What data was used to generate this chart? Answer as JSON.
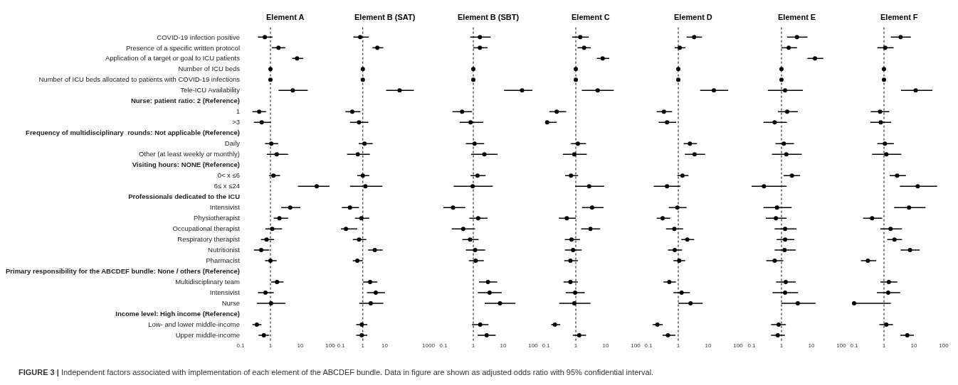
{
  "chart_data": [
    {
      "type": "scatter",
      "title": "Element A",
      "orientation": "horizontal",
      "color": "#000000",
      "marker": "circle",
      "log": "x",
      "xlim": [
        0.1,
        100
      ],
      "xticks": [
        0.1,
        1,
        10,
        100
      ],
      "ref_lines": [
        {
          "axis": "x",
          "value": 1,
          "line_style": "dotted",
          "color": "#000000"
        }
      ],
      "annotations": [
        "FIGURE 3 | Independent factors associated with implementation of each element of the ABCDEF bundle. Data in figure are shown as adjusted odds ratio with 95% confidential interval."
      ],
      "categories": [
        "COVID-19 infection positive",
        "Presence of a specific written protocol",
        "Application of a target or goal to ICU patients",
        "Number of ICU beds",
        "Number of ICU beds allocated to patients with COVID-19 infections",
        "Tele-ICU Availability",
        "Nurse: patient ratio: 2 (Reference)",
        "1",
        ">3",
        "Frequency of multidisciplinary  rounds: Not applicable (Reference)",
        "Daily",
        "Other (at least weekly or monthly)",
        "Visiting hours: NONE (Reference)",
        "0< x ≤6",
        "6≤ x ≤24",
        "Professionals dedicated to the ICU",
        "Intensivist",
        "Physiotherapist",
        "Occupational therapist",
        "Respiratory therapist",
        "Nutritionist",
        "Pharmacist",
        "Primary responsibility for the ABCDEF bundle: None / others (Reference)",
        "Multidisciplinary team",
        "Intensivist",
        "Nurse",
        "Income level: High income (Reference)",
        "Low- and lower middle-income",
        "Upper middle-income"
      ],
      "values": [
        0.65,
        1.86,
        7.8,
        1,
        1,
        5.6,
        null,
        0.42,
        0.51,
        null,
        1.07,
        1.62,
        null,
        1.26,
        35.5,
        null,
        4.6,
        2.0,
        1.15,
        0.74,
        0.49,
        1.0,
        null,
        1.66,
        0.68,
        1.05,
        null,
        0.35,
        0.6
      ],
      "errors": [
        [
          0.38,
          1.17
        ],
        [
          1.12,
          3.16
        ],
        [
          5.4,
          12.6
        ],
        null,
        null,
        [
          1.86,
          17.8
        ],
        null,
        [
          0.25,
          0.71
        ],
        [
          0.28,
          1.02
        ],
        null,
        [
          0.66,
          1.82
        ],
        [
          0.76,
          3.9
        ],
        null,
        [
          0.89,
          2.1
        ],
        [
          8.3,
          95
        ],
        null,
        [
          2.3,
          10
        ],
        [
          1.29,
          3.9
        ],
        [
          0.68,
          2.45
        ],
        [
          0.48,
          1.32
        ],
        [
          0.28,
          0.91
        ],
        [
          0.66,
          1.62
        ],
        null,
        [
          1.05,
          2.75
        ],
        [
          0.38,
          1.29
        ],
        [
          0.35,
          3.16
        ],
        null,
        [
          0.25,
          0.5
        ],
        [
          0.4,
          0.9
        ]
      ]
    },
    {
      "type": "scatter",
      "title": "Element B (SAT)",
      "orientation": "horizontal",
      "color": "#000000",
      "marker": "circle",
      "log": "x",
      "tick_labels": "x",
      "xlim": [
        0.1,
        1000
      ],
      "xticks": [
        0.1,
        1,
        10,
        1000
      ],
      "ref_lines": [
        {
          "axis": "x",
          "value": 1,
          "line_style": "dotted",
          "color": "#000000"
        }
      ],
      "values": [
        0.76,
        4.6,
        null,
        1,
        1,
        48,
        null,
        0.33,
        0.67,
        null,
        1.2,
        0.59,
        null,
        1.0,
        1.32,
        null,
        0.26,
        0.86,
        0.17,
        0.67,
        3.5,
        0.56,
        null,
        2.15,
        3.9,
        2.3,
        null,
        0.9,
        0.9
      ],
      "errors": [
        [
          0.37,
          1.85
        ],
        [
          2.75,
          8.6
        ],
        null,
        null,
        null,
        [
          11.6,
          215
        ],
        null,
        [
          0.16,
          0.78
        ],
        [
          0.26,
          1.79
        ],
        null,
        [
          0.65,
          2.84
        ],
        [
          0.19,
          2.09
        ],
        null,
        [
          0.56,
          1.97
        ],
        [
          0.26,
          7.8
        ],
        null,
        [
          0.11,
          0.67
        ],
        [
          0.44,
          1.97
        ],
        [
          0.1,
          0.56
        ],
        [
          0.35,
          1.45
        ],
        [
          1.74,
          8.1
        ],
        [
          0.35,
          1.0
        ],
        null,
        [
          1.03,
          4.6
        ],
        [
          1.54,
          10.3
        ],
        [
          0.69,
          8.6
        ],
        null,
        [
          0.5,
          1.6
        ],
        [
          0.5,
          1.6
        ]
      ]
    },
    {
      "type": "scatter",
      "title": "Element B (SBT)",
      "orientation": "horizontal",
      "color": "#000000",
      "marker": "circle",
      "log": "x",
      "tick_labels": "x",
      "xlim": [
        0.1,
        100
      ],
      "xticks": [
        0.1,
        1,
        10,
        100
      ],
      "ref_lines": [
        {
          "axis": "x",
          "value": 1,
          "line_style": "dotted",
          "color": "#000000"
        }
      ],
      "values": [
        1.66,
        1.66,
        null,
        1,
        1,
        42.7,
        null,
        0.42,
        0.81,
        null,
        1.1,
        2.34,
        null,
        1.38,
        0.95,
        null,
        0.21,
        1.45,
        0.46,
        0.78,
        1.15,
        1.2,
        null,
        3.1,
        3.5,
        7.8,
        null,
        1.7,
        2.8
      ],
      "errors": [
        [
          0.79,
          3.8
        ],
        [
          1.0,
          3.0
        ],
        null,
        null,
        null,
        [
          10.7,
          95
        ],
        null,
        [
          0.2,
          0.91
        ],
        [
          0.35,
          2.14
        ],
        null,
        [
          0.56,
          2.3
        ],
        [
          0.85,
          6.5
        ],
        null,
        [
          0.81,
          2.57
        ],
        [
          0.22,
          4.5
        ],
        null,
        [
          0.1,
          0.54
        ],
        [
          0.74,
          3.0
        ],
        [
          0.19,
          1.15
        ],
        [
          0.43,
          1.51
        ],
        [
          0.56,
          2.5
        ],
        [
          0.71,
          2.24
        ],
        null,
        [
          1.55,
          6.3
        ],
        [
          1.41,
          8.9
        ],
        [
          2.4,
          25.7
        ],
        null,
        [
          0.9,
          3.2
        ],
        [
          1.4,
          5.6
        ]
      ]
    },
    {
      "type": "scatter",
      "title": "Element C",
      "orientation": "horizontal",
      "color": "#000000",
      "marker": "circle",
      "log": "x",
      "tick_labels": "x",
      "xlim": [
        0.1,
        100
      ],
      "xticks": [
        0.1,
        1,
        10,
        100
      ],
      "ref_lines": [
        {
          "axis": "x",
          "value": 1,
          "line_style": "dotted",
          "color": "#000000"
        }
      ],
      "values": [
        1.41,
        1.9,
        7.9,
        1,
        1,
        5.4,
        null,
        0.23,
        0.11,
        null,
        1.17,
        0.89,
        null,
        0.69,
        2.8,
        null,
        3.5,
        0.5,
        3.1,
        0.72,
        0.81,
        0.66,
        null,
        0.66,
        0.95,
        0.89,
        null,
        0.2,
        1.3
      ],
      "errors": [
        [
          0.76,
          2.7
        ],
        [
          1.15,
          3.16
        ],
        [
          5.1,
          13.2
        ],
        null,
        null,
        [
          1.58,
          18.6
        ],
        null,
        [
          0.13,
          0.48
        ],
        [
          0.1,
          0.23
        ],
        null,
        [
          0.69,
          2.19
        ],
        [
          0.37,
          2.34
        ],
        null,
        [
          0.44,
          1.2
        ],
        [
          0.95,
          8.9
        ],
        null,
        [
          1.62,
          8.5
        ],
        [
          0.27,
          1.0
        ],
        [
          1.51,
          6.5
        ],
        [
          0.43,
          1.38
        ],
        [
          0.43,
          1.58
        ],
        [
          0.41,
          1.17
        ],
        null,
        [
          0.39,
          1.17
        ],
        [
          0.46,
          2.0
        ],
        [
          0.28,
          3.1
        ],
        null,
        [
          0.15,
          0.3
        ],
        [
          0.8,
          2.2
        ]
      ]
    },
    {
      "type": "scatter",
      "title": "Element D",
      "orientation": "horizontal",
      "color": "#000000",
      "marker": "circle",
      "log": "x",
      "tick_labels": "x",
      "xlim": [
        0.1,
        100
      ],
      "xticks": [
        0.1,
        1,
        10,
        100
      ],
      "ref_lines": [
        {
          "axis": "x",
          "value": 1,
          "line_style": "dotted",
          "color": "#000000"
        }
      ],
      "values": [
        3.4,
        1.12,
        null,
        1,
        1,
        15.5,
        null,
        0.33,
        0.42,
        null,
        2.45,
        3.5,
        null,
        1.38,
        0.42,
        null,
        0.93,
        0.3,
        0.74,
        2.0,
        0.76,
        1.07,
        null,
        0.5,
        1.29,
        2.57,
        null,
        0.2,
        0.45
      ],
      "errors": [
        [
          1.9,
          6.2
        ],
        [
          0.76,
          1.74
        ],
        null,
        null,
        null,
        [
          5.4,
          46.8
        ],
        null,
        [
          0.19,
          0.62
        ],
        [
          0.22,
          0.85
        ],
        null,
        [
          1.51,
          4.2
        ],
        [
          1.66,
          7.9
        ],
        null,
        [
          0.93,
          2.19
        ],
        [
          0.15,
          1.17
        ],
        null,
        [
          0.48,
          1.9
        ],
        [
          0.19,
          0.54
        ],
        [
          0.39,
          1.45
        ],
        [
          1.26,
          3.4
        ],
        [
          0.45,
          1.35
        ],
        [
          0.69,
          1.7
        ],
        null,
        [
          0.32,
          0.83
        ],
        [
          0.69,
          2.45
        ],
        [
          1.0,
          6.6
        ],
        null,
        [
          0.14,
          0.3
        ],
        [
          0.3,
          0.8
        ]
      ]
    },
    {
      "type": "scatter",
      "title": "Element E",
      "orientation": "horizontal",
      "color": "#000000",
      "marker": "circle",
      "log": "x",
      "tick_labels": "x",
      "xlim": [
        0.1,
        100
      ],
      "xticks": [
        0.1,
        1,
        10,
        100
      ],
      "ref_lines": [
        {
          "axis": "x",
          "value": 1,
          "line_style": "dotted",
          "color": "#000000"
        }
      ],
      "values": [
        3.3,
        1.74,
        13.2,
        1,
        1,
        1.32,
        null,
        1.55,
        0.59,
        null,
        1.2,
        1.45,
        null,
        2.24,
        0.26,
        null,
        0.71,
        0.65,
        1.32,
        1.32,
        1.26,
        0.59,
        null,
        1.38,
        1.32,
        3.5,
        null,
        0.8,
        0.75
      ],
      "errors": [
        [
          1.55,
          7.4
        ],
        [
          1.0,
          3.3
        ],
        [
          7.4,
          25
        ],
        null,
        null,
        [
          0.35,
          5.2
        ],
        null,
        [
          0.76,
          3.5
        ],
        [
          0.25,
          1.51
        ],
        null,
        [
          0.63,
          2.63
        ],
        [
          0.48,
          4.8
        ],
        null,
        [
          1.17,
          4.2
        ],
        [
          0.1,
          1.48
        ],
        null,
        [
          0.25,
          2.19
        ],
        [
          0.3,
          1.48
        ],
        [
          0.59,
          3.2
        ],
        [
          0.69,
          2.7
        ],
        [
          0.59,
          3.0
        ],
        [
          0.31,
          1.15
        ],
        null,
        [
          0.66,
          3.0
        ],
        [
          0.5,
          3.6
        ],
        [
          0.98,
          13.8
        ],
        null,
        [
          0.45,
          1.4
        ],
        [
          0.45,
          1.3
        ]
      ]
    },
    {
      "type": "scatter",
      "title": "Element F",
      "orientation": "horizontal",
      "color": "#000000",
      "marker": "circle",
      "log": "x",
      "tick_labels": "x",
      "xlim": [
        0.1,
        100
      ],
      "xticks": [
        0.1,
        1,
        10,
        100
      ],
      "ref_lines": [
        {
          "axis": "x",
          "value": 1,
          "line_style": "dotted",
          "color": "#000000"
        }
      ],
      "values": [
        3.6,
        1.1,
        null,
        1,
        1,
        11.5,
        null,
        0.74,
        0.78,
        null,
        1.07,
        1.2,
        null,
        2.75,
        13.5,
        null,
        6.9,
        0.4,
        1.66,
        2.24,
        7.4,
        0.29,
        null,
        1.45,
        1.38,
        0.1,
        null,
        1.2,
        6
      ],
      "errors": [
        [
          1.7,
          7.9
        ],
        [
          0.6,
          2.1
        ],
        null,
        null,
        null,
        [
          3.7,
          41.7
        ],
        null,
        [
          0.36,
          1.51
        ],
        [
          0.35,
          1.74
        ],
        null,
        [
          0.6,
          2.14
        ],
        [
          0.4,
          3.8
        ],
        null,
        [
          1.55,
          5.4
        ],
        [
          3.4,
          60
        ],
        null,
        [
          2.19,
          24.5
        ],
        [
          0.2,
          0.87
        ],
        [
          0.76,
          4.0
        ],
        [
          1.29,
          4.0
        ],
        [
          3.6,
          15.8
        ],
        [
          0.17,
          0.55
        ],
        null,
        [
          0.76,
          2.8
        ],
        [
          0.58,
          3.5
        ],
        [
          0.1,
          1.7
        ],
        null,
        [
          0.7,
          2.0
        ],
        [
          3.5,
          10
        ]
      ]
    }
  ]
}
